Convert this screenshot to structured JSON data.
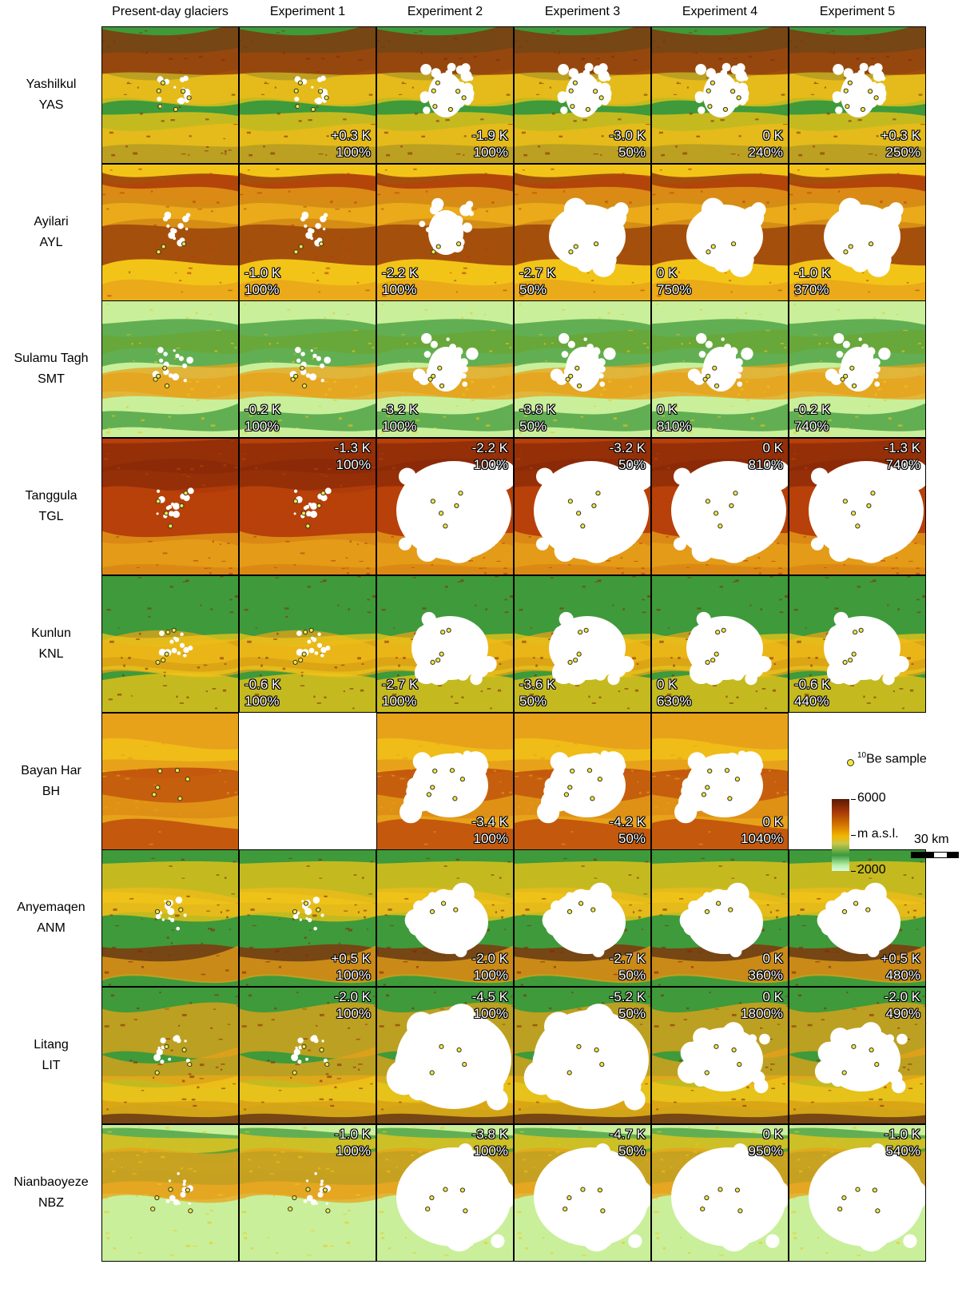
{
  "columns": [
    "Present-day glaciers",
    "Experiment 1",
    "Experiment 2",
    "Experiment 3",
    "Experiment 4",
    "Experiment 5"
  ],
  "rows": [
    {
      "name": "Yashilkul",
      "code": "YAS",
      "theme": "mixed",
      "ice": [
        1,
        1,
        2,
        2,
        2,
        2
      ],
      "annotations": [
        null,
        {
          "pos": "br",
          "dt": "+0.3 K",
          "p": "100%"
        },
        {
          "pos": "br",
          "dt": "-1.9 K",
          "p": "100%"
        },
        {
          "pos": "br",
          "dt": "-3.0 K",
          "p": "50%"
        },
        {
          "pos": "br",
          "dt": "0 K",
          "p": "240%"
        },
        {
          "pos": "br",
          "dt": "+0.3 K",
          "p": "250%"
        }
      ]
    },
    {
      "name": "Ayilari",
      "code": "AYL",
      "theme": "brown",
      "ice": [
        1,
        1,
        2,
        3,
        3,
        3
      ],
      "annotations": [
        null,
        {
          "pos": "bl",
          "dt": "-1.0 K",
          "p": "100%"
        },
        {
          "pos": "bl",
          "dt": "-2.2 K",
          "p": "100%"
        },
        {
          "pos": "bl",
          "dt": "-2.7 K",
          "p": "50%"
        },
        {
          "pos": "bl",
          "dt": "0 K",
          "p": "750%"
        },
        {
          "pos": "bl",
          "dt": "-1.0 K",
          "p": "370%"
        }
      ]
    },
    {
      "name": "Sulamu Tagh",
      "code": "SMT",
      "theme": "green",
      "ice": [
        1,
        1,
        2,
        2,
        2,
        2
      ],
      "annotations": [
        null,
        {
          "pos": "bl",
          "dt": "-0.2 K",
          "p": "100%"
        },
        {
          "pos": "bl",
          "dt": "-3.2 K",
          "p": "100%"
        },
        {
          "pos": "bl",
          "dt": "-3.8 K",
          "p": "50%"
        },
        {
          "pos": "bl",
          "dt": "0 K",
          "p": "810%"
        },
        {
          "pos": "bl",
          "dt": "-0.2 K",
          "p": "740%"
        }
      ]
    },
    {
      "name": "Tanggula",
      "code": "TGL",
      "theme": "red",
      "ice": [
        1,
        1,
        4,
        4,
        4,
        4
      ],
      "annotations": [
        null,
        {
          "pos": "tr",
          "dt": "-1.3 K",
          "p": "100%"
        },
        {
          "pos": "tr",
          "dt": "-2.2 K",
          "p": "100%"
        },
        {
          "pos": "tr",
          "dt": "-3.2 K",
          "p": "50%"
        },
        {
          "pos": "tr",
          "dt": "0 K",
          "p": "810%"
        },
        {
          "pos": "tr",
          "dt": "-1.3 K",
          "p": "740%"
        }
      ]
    },
    {
      "name": "Kunlun",
      "code": "KNL",
      "theme": "mixed",
      "ice": [
        1,
        1,
        3,
        3,
        3,
        3
      ],
      "annotations": [
        null,
        {
          "pos": "bl",
          "dt": "-0.6 K",
          "p": "100%"
        },
        {
          "pos": "bl",
          "dt": "-2.7 K",
          "p": "100%"
        },
        {
          "pos": "bl",
          "dt": "-3.6 K",
          "p": "50%"
        },
        {
          "pos": "bl",
          "dt": "0 K",
          "p": "630%"
        },
        {
          "pos": "bl",
          "dt": "-0.6 K",
          "p": "440%"
        }
      ]
    },
    {
      "name": "Bayan Har",
      "code": "BH",
      "theme": "orange",
      "ice": [
        0,
        -1,
        3,
        3,
        3,
        -1
      ],
      "annotations": [
        null,
        null,
        {
          "pos": "br",
          "dt": "-3.4 K",
          "p": "100%"
        },
        {
          "pos": "br",
          "dt": "-4.2 K",
          "p": "50%"
        },
        {
          "pos": "br",
          "dt": "0 K",
          "p": "1040%"
        },
        null
      ]
    },
    {
      "name": "Anyemaqen",
      "code": "ANM",
      "theme": "mixed",
      "ice": [
        1,
        1,
        3,
        3,
        3,
        3
      ],
      "annotations": [
        null,
        {
          "pos": "br",
          "dt": "+0.5 K",
          "p": "100%"
        },
        {
          "pos": "br",
          "dt": "-2.0 K",
          "p": "100%"
        },
        {
          "pos": "br",
          "dt": "-2.7 K",
          "p": "50%"
        },
        {
          "pos": "br",
          "dt": "0 K",
          "p": "360%"
        },
        {
          "pos": "br",
          "dt": "+0.5 K",
          "p": "480%"
        }
      ]
    },
    {
      "name": "Litang",
      "code": "LIT",
      "theme": "mixed",
      "ice": [
        1,
        1,
        4,
        4,
        3,
        3
      ],
      "annotations": [
        null,
        {
          "pos": "tr",
          "dt": "-2.0 K",
          "p": "100%"
        },
        {
          "pos": "tr",
          "dt": "-4.5 K",
          "p": "100%"
        },
        {
          "pos": "tr",
          "dt": "-5.2 K",
          "p": "50%"
        },
        {
          "pos": "tr",
          "dt": "0 K",
          "p": "1800%"
        },
        {
          "pos": "tr",
          "dt": "-2.0 K",
          "p": "490%"
        }
      ]
    },
    {
      "name": "Nianbaoyeze",
      "code": "NBZ",
      "theme": "green",
      "ice": [
        1,
        1,
        4,
        4,
        4,
        4
      ],
      "annotations": [
        null,
        {
          "pos": "tr",
          "dt": "-1.0 K",
          "p": "100%"
        },
        {
          "pos": "tr",
          "dt": "-3.8 K",
          "p": "100%"
        },
        {
          "pos": "tr",
          "dt": "-4.7 K",
          "p": "50%"
        },
        {
          "pos": "tr",
          "dt": "0 K",
          "p": "950%"
        },
        {
          "pos": "tr",
          "dt": "-1.0 K",
          "p": "540%"
        }
      ]
    }
  ],
  "legend": {
    "sample_superscript": "10",
    "sample_label": "Be sample",
    "elev_max": "6000",
    "elev_unit": "m a.s.l.",
    "elev_min": "2000",
    "scale": "30 km"
  },
  "colors": {
    "brown": "#8a2a08",
    "red": "#b8400a",
    "orange": "#e7a21a",
    "yellow": "#f2c418",
    "green": "#3e9a3a",
    "light_green": "#c9ef9a",
    "ice": "#ffffff",
    "sample": "#f2e83a"
  }
}
